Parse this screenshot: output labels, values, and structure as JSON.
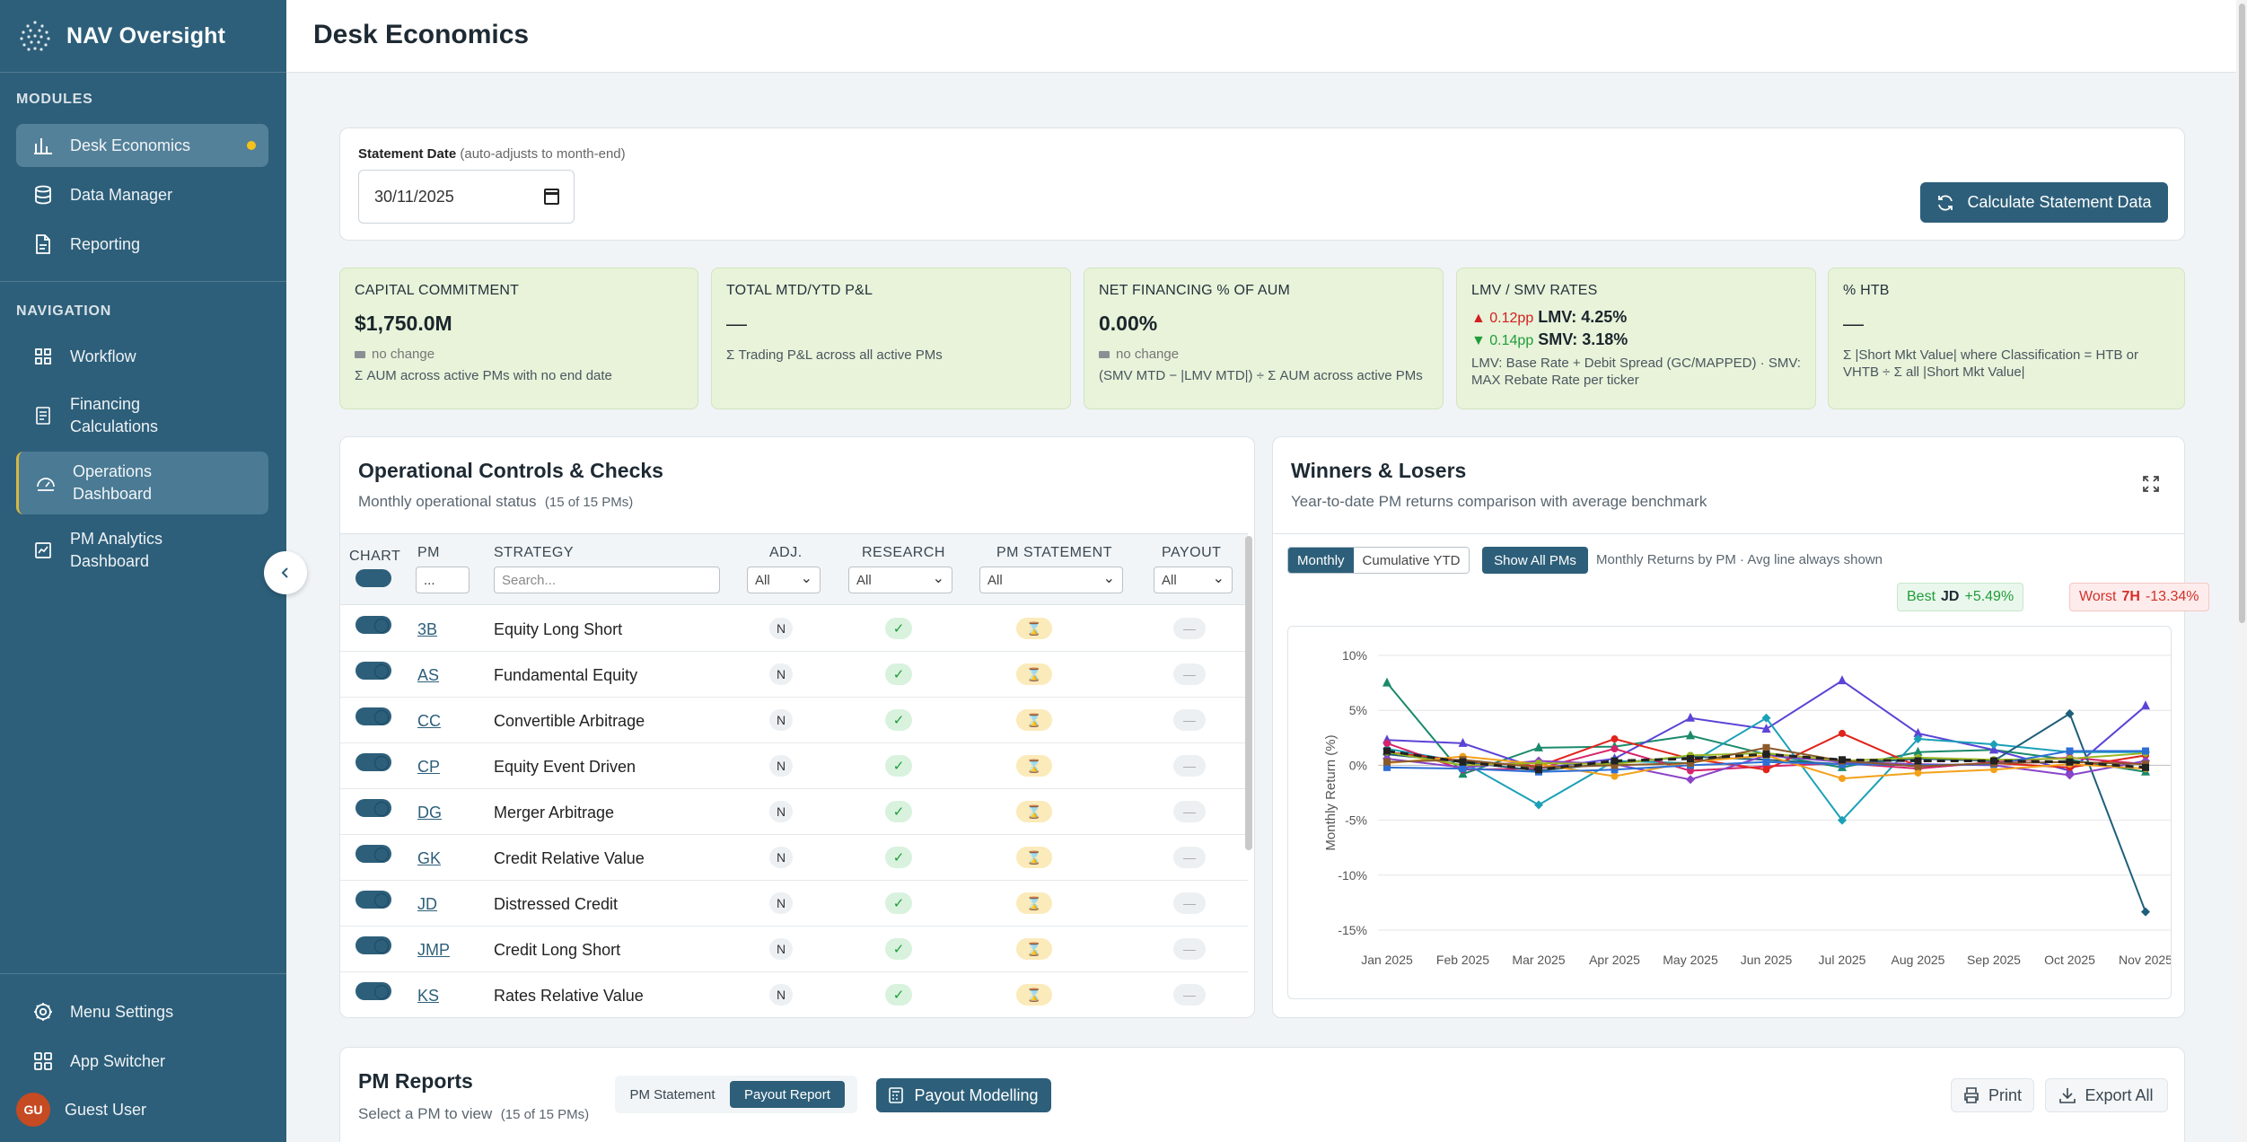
{
  "app": {
    "name": "NAV Oversight",
    "page_title": "Desk Economics"
  },
  "sidebar": {
    "modules_label": "MODULES",
    "navigation_label": "NAVIGATION",
    "modules": [
      {
        "label": "Desk Economics",
        "icon": "bar-chart-icon"
      },
      {
        "label": "Data Manager",
        "icon": "database-icon"
      },
      {
        "label": "Reporting",
        "icon": "file-icon"
      }
    ],
    "navigation": [
      {
        "label": "Workflow",
        "icon": "grid-icon"
      },
      {
        "label": "Financing Calculations",
        "icon": "document-icon"
      },
      {
        "label": "Operations Dashboard",
        "icon": "dashboard-icon"
      },
      {
        "label": "PM Analytics Dashboard",
        "icon": "analytics-icon"
      }
    ],
    "bottom": [
      {
        "label": "Menu Settings",
        "icon": "gear-icon"
      },
      {
        "label": "App Switcher",
        "icon": "apps-icon"
      }
    ],
    "user": {
      "initials": "GU",
      "name": "Guest User"
    }
  },
  "statement": {
    "label": "Statement Date",
    "hint": "(auto-adjusts to month-end)",
    "value": "30/11/2025",
    "calculate_label": "Calculate Statement Data"
  },
  "kpis": {
    "capital": {
      "title": "CAPITAL COMMITMENT",
      "value": "$1,750.0M",
      "change": "no change",
      "desc": "Σ AUM across active PMs with no end date"
    },
    "pnl": {
      "title": "TOTAL MTD/YTD P&L",
      "value": "—",
      "desc": "Σ Trading P&L across all active PMs"
    },
    "financing": {
      "title": "NET FINANCING % OF AUM",
      "value": "0.00%",
      "change": "no change",
      "desc": "(SMV MTD − |LMV MTD|) ÷ Σ AUM across active PMs"
    },
    "rates": {
      "title": "LMV / SMV RATES",
      "lmv_delta": "▲ 0.12pp",
      "lmv": "LMV: 4.25%",
      "smv_delta": "▼ 0.14pp",
      "smv": "SMV: 3.18%",
      "desc": "LMV: Base Rate + Debit Spread (GC/MAPPED) · SMV: MAX Rebate Rate per ticker"
    },
    "htb": {
      "title": "% HTB",
      "value": "—",
      "desc": "Σ |Short Mkt Value| where Classification = HTB or VHTB ÷ Σ all |Short Mkt Value|"
    }
  },
  "ops": {
    "title": "Operational Controls & Checks",
    "subtitle": "Monthly operational status",
    "count": "(15 of 15 PMs)",
    "headers": {
      "chart": "CHART",
      "pm": "PM",
      "strategy": "STRATEGY",
      "adj": "ADJ.",
      "research": "RESEARCH",
      "pm_statement": "PM STATEMENT",
      "payout": "PAYOUT"
    },
    "filters": {
      "pm": "...",
      "strategy": "Search...",
      "all": "All"
    },
    "rows": [
      {
        "pm": "3B",
        "strategy": "Equity Long Short",
        "adj": "N",
        "research": "✓",
        "statement": "⌛",
        "payout": "—"
      },
      {
        "pm": "AS",
        "strategy": "Fundamental Equity",
        "adj": "N",
        "research": "✓",
        "statement": "⌛",
        "payout": "—"
      },
      {
        "pm": "CC",
        "strategy": "Convertible Arbitrage",
        "adj": "N",
        "research": "✓",
        "statement": "⌛",
        "payout": "—"
      },
      {
        "pm": "CP",
        "strategy": "Equity Event Driven",
        "adj": "N",
        "research": "✓",
        "statement": "⌛",
        "payout": "—"
      },
      {
        "pm": "DG",
        "strategy": "Merger Arbitrage",
        "adj": "N",
        "research": "✓",
        "statement": "⌛",
        "payout": "—"
      },
      {
        "pm": "GK",
        "strategy": "Credit Relative Value",
        "adj": "N",
        "research": "✓",
        "statement": "⌛",
        "payout": "—"
      },
      {
        "pm": "JD",
        "strategy": "Distressed Credit",
        "adj": "N",
        "research": "✓",
        "statement": "⌛",
        "payout": "—"
      },
      {
        "pm": "JMP",
        "strategy": "Credit Long Short",
        "adj": "N",
        "research": "✓",
        "statement": "⌛",
        "payout": "—"
      },
      {
        "pm": "KS",
        "strategy": "Rates Relative Value",
        "adj": "N",
        "research": "✓",
        "statement": "⌛",
        "payout": "—"
      }
    ]
  },
  "winners": {
    "title": "Winners & Losers",
    "subtitle": "Year-to-date PM returns comparison with average benchmark",
    "modes": [
      "Monthly",
      "Cumulative YTD"
    ],
    "show_all_label": "Show All PMs",
    "caption": "Monthly Returns by PM · Avg line always shown",
    "best": {
      "label": "Best",
      "pm": "JD",
      "value": "+5.49%"
    },
    "worst": {
      "label": "Worst",
      "pm": "7H",
      "value": "-13.34%"
    }
  },
  "chart_data": {
    "type": "line",
    "ylabel": "Monthly Return (%)",
    "categories": [
      "Jan 2025",
      "Feb 2025",
      "Mar 2025",
      "Apr 2025",
      "May 2025",
      "Jun 2025",
      "Jul 2025",
      "Aug 2025",
      "Sep 2025",
      "Oct 2025",
      "Nov 2025"
    ],
    "ylim": [
      -15,
      10
    ],
    "yticks": [
      10,
      5,
      0,
      -5,
      -10,
      -15
    ],
    "ytick_labels": [
      "10%",
      "5%",
      "0%",
      "-5%",
      "-10%",
      "-15%"
    ],
    "grid": true,
    "series": [
      {
        "color": "#1a8a6a",
        "marker": "triangle",
        "values": [
          7.5,
          -0.8,
          1.6,
          1.7,
          2.7,
          1.0,
          -0.2,
          1.2,
          1.4,
          0.5,
          -0.6
        ]
      },
      {
        "color": "#5b44d6",
        "marker": "triangle",
        "values": [
          2.3,
          2.0,
          -0.3,
          0.6,
          4.3,
          3.3,
          7.7,
          2.9,
          1.4,
          -0.5,
          5.4
        ]
      },
      {
        "color": "#1aa0b8",
        "marker": "diamond",
        "values": [
          1.5,
          0.3,
          -3.6,
          0.4,
          0.2,
          4.3,
          -5.0,
          2.4,
          1.9,
          1.2,
          1.2
        ]
      },
      {
        "color": "#d6246a",
        "marker": "circle",
        "values": [
          2.0,
          -0.4,
          -0.3,
          1.5,
          -0.5,
          -0.1,
          0.2,
          -0.3,
          0.3,
          0.7,
          0.1
        ]
      },
      {
        "color": "#e0241d",
        "marker": "circle",
        "values": [
          1.2,
          0.4,
          -0.1,
          2.4,
          0.6,
          -0.4,
          2.9,
          -0.1,
          0.2,
          -0.2,
          0.9
        ]
      },
      {
        "color": "#1f5f7a",
        "marker": "diamond",
        "values": [
          1.0,
          0.3,
          -0.5,
          0.2,
          0.8,
          0.5,
          0.1,
          0.6,
          0.4,
          4.7,
          -13.34
        ]
      },
      {
        "color": "#8a44c8",
        "marker": "diamond",
        "values": [
          0.6,
          -0.2,
          0.4,
          0.1,
          -1.3,
          0.9,
          0.3,
          0.1,
          0.0,
          -0.9,
          0.4
        ]
      },
      {
        "color": "#f4a11a",
        "marker": "circle",
        "values": [
          0.2,
          0.8,
          0.1,
          -1.0,
          0.3,
          0.9,
          -1.2,
          -0.7,
          -0.4,
          0.1,
          -0.3
        ]
      },
      {
        "color": "#9ab520",
        "marker": "circle",
        "values": [
          1.2,
          0.0,
          0.2,
          0.1,
          0.9,
          1.1,
          0.4,
          0.7,
          0.5,
          0.6,
          1.1
        ]
      },
      {
        "color": "#2e6fd6",
        "marker": "square",
        "values": [
          -0.2,
          -0.3,
          -0.6,
          -0.4,
          0.0,
          0.3,
          0.1,
          0.0,
          0.1,
          1.3,
          1.3
        ]
      },
      {
        "color": "#8b5a2b",
        "marker": "square",
        "values": [
          0.3,
          0.5,
          -0.2,
          0.0,
          0.2,
          1.6,
          0.4,
          -0.1,
          0.2,
          0.3,
          0.1
        ]
      },
      {
        "color": "#222222",
        "marker": "square",
        "dashed": true,
        "values": [
          1.3,
          0.3,
          -0.4,
          0.4,
          0.6,
          1.0,
          0.5,
          0.4,
          0.4,
          0.3,
          -0.2
        ]
      }
    ]
  },
  "reports": {
    "title": "PM Reports",
    "subtitle": "Select a PM to view",
    "count": "(15 of 15 PMs)",
    "tabs": [
      "PM Statement",
      "Payout Report"
    ],
    "modelling_label": "Payout Modelling",
    "print_label": "Print",
    "export_label": "Export All"
  }
}
